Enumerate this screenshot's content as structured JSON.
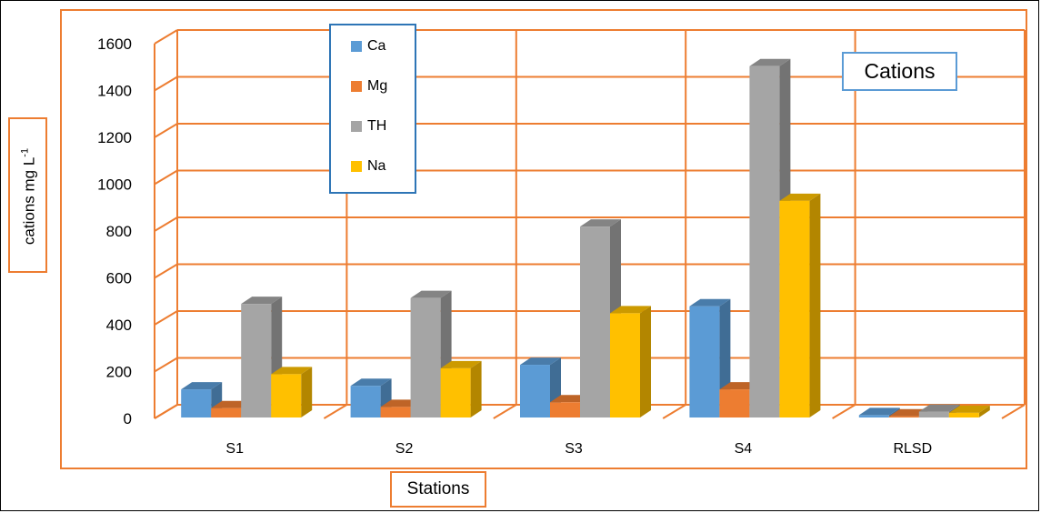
{
  "chart_data": {
    "type": "bar",
    "title": "Cations",
    "xlabel": "Stations",
    "ylabel": {
      "text": "cations  mg L",
      "sup": "-1"
    },
    "categories": [
      "S1",
      "S2",
      "S3",
      "S4",
      "RLSD"
    ],
    "series": [
      {
        "name": "Ca",
        "color": "#5B9BD5",
        "values": [
          120,
          135,
          225,
          475,
          10
        ]
      },
      {
        "name": "Mg",
        "color": "#ED7D31",
        "values": [
          40,
          45,
          65,
          120,
          5
        ]
      },
      {
        "name": "TH",
        "color": "#A5A5A5",
        "values": [
          485,
          510,
          815,
          1500,
          25
        ]
      },
      {
        "name": "Na",
        "color": "#FFC000",
        "values": [
          185,
          210,
          445,
          925,
          20
        ]
      }
    ],
    "ylim": [
      0,
      1600
    ],
    "yticks": [
      "0",
      "200",
      "400",
      "600",
      "800",
      "1000",
      "1200",
      "1400",
      "1600"
    ],
    "grid": true,
    "legend_position": "top-left",
    "grid_color": "#ED7D31"
  }
}
